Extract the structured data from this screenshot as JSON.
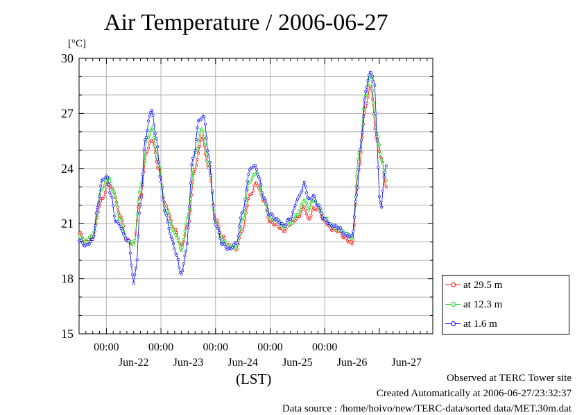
{
  "chart_data": {
    "type": "line",
    "title": "Air Temperature / 2006-06-27",
    "ylabel": "[°C]",
    "xlabel": "(LST)",
    "ylim": [
      15,
      30
    ],
    "yticks": [
      15,
      18,
      21,
      24,
      27,
      30
    ],
    "xlim": [
      "2006-06-21T12:00",
      "2006-06-27T23:30"
    ],
    "xtick_time_labels": [
      "00:00",
      "00:00",
      "00:00",
      "00:00",
      "00:00"
    ],
    "xtick_times": [
      "2006-06-22T00:00",
      "2006-06-23T00:00",
      "2006-06-24T00:00",
      "2006-06-25T00:00",
      "2006-06-26T00:00"
    ],
    "date_labels": [
      "Jun-22",
      "Jun-23",
      "Jun-24",
      "Jun-25",
      "Jun-26",
      "Jun-27"
    ],
    "grid": true,
    "legend_position": "right",
    "series": [
      {
        "name": "at 29.5 m",
        "color": "#ff0000",
        "keypoints": [
          [
            "2006-06-21T12:00",
            20.5
          ],
          [
            "2006-06-21T15:00",
            20.0
          ],
          [
            "2006-06-21T18:00",
            20.3
          ],
          [
            "2006-06-21T22:00",
            22.3
          ],
          [
            "2006-06-22T01:00",
            23.2
          ],
          [
            "2006-06-22T03:00",
            22.8
          ],
          [
            "2006-06-22T06:00",
            21.5
          ],
          [
            "2006-06-22T09:00",
            20.1
          ],
          [
            "2006-06-22T12:00",
            19.9
          ],
          [
            "2006-06-22T15:00",
            22.5
          ],
          [
            "2006-06-22T18:00",
            25.0
          ],
          [
            "2006-06-22T20:00",
            25.6
          ],
          [
            "2006-06-22T23:00",
            24.0
          ],
          [
            "2006-06-23T02:00",
            22.0
          ],
          [
            "2006-06-23T06:00",
            20.7
          ],
          [
            "2006-06-23T09:00",
            19.8
          ],
          [
            "2006-06-23T12:00",
            21.0
          ],
          [
            "2006-06-23T15:00",
            24.0
          ],
          [
            "2006-06-23T18:00",
            25.7
          ],
          [
            "2006-06-23T21:00",
            24.0
          ],
          [
            "2006-06-24T00:00",
            21.3
          ],
          [
            "2006-06-24T03:00",
            20.3
          ],
          [
            "2006-06-24T06:00",
            19.8
          ],
          [
            "2006-06-24T09:00",
            19.6
          ],
          [
            "2006-06-24T12:00",
            20.7
          ],
          [
            "2006-06-24T15:00",
            22.5
          ],
          [
            "2006-06-24T18:00",
            23.2
          ],
          [
            "2006-06-24T21:00",
            22.3
          ],
          [
            "2006-06-25T00:00",
            21.1
          ],
          [
            "2006-06-25T03:00",
            20.9
          ],
          [
            "2006-06-25T06:00",
            20.6
          ],
          [
            "2006-06-25T09:00",
            21.0
          ],
          [
            "2006-06-25T12:00",
            21.3
          ],
          [
            "2006-06-25T15:00",
            21.9
          ],
          [
            "2006-06-25T17:00",
            21.2
          ],
          [
            "2006-06-25T19:00",
            21.8
          ],
          [
            "2006-06-25T21:00",
            21.8
          ],
          [
            "2006-06-26T00:00",
            21.1
          ],
          [
            "2006-06-26T03:00",
            20.7
          ],
          [
            "2006-06-26T06:00",
            20.6
          ],
          [
            "2006-06-26T09:00",
            20.2
          ],
          [
            "2006-06-26T12:00",
            19.9
          ],
          [
            "2006-06-26T15:00",
            24.0
          ],
          [
            "2006-06-26T18:00",
            27.3
          ],
          [
            "2006-06-26T20:00",
            28.5
          ],
          [
            "2006-06-26T23:00",
            25.5
          ],
          [
            "2006-06-27T01:00",
            24.5
          ],
          [
            "2006-06-27T03:00",
            23.0
          ]
        ]
      },
      {
        "name": "at 12.3 m",
        "color": "#00d800",
        "keypoints": [
          [
            "2006-06-21T12:00",
            20.3
          ],
          [
            "2006-06-21T15:00",
            20.0
          ],
          [
            "2006-06-21T18:00",
            20.4
          ],
          [
            "2006-06-21T22:00",
            22.9
          ],
          [
            "2006-06-22T01:00",
            23.5
          ],
          [
            "2006-06-22T03:00",
            22.8
          ],
          [
            "2006-06-22T06:00",
            21.2
          ],
          [
            "2006-06-22T09:00",
            20.1
          ],
          [
            "2006-06-22T12:00",
            19.9
          ],
          [
            "2006-06-22T15:00",
            23.0
          ],
          [
            "2006-06-22T18:00",
            25.6
          ],
          [
            "2006-06-22T20:00",
            26.2
          ],
          [
            "2006-06-22T23:00",
            24.3
          ],
          [
            "2006-06-23T02:00",
            21.8
          ],
          [
            "2006-06-23T06:00",
            20.5
          ],
          [
            "2006-06-23T09:00",
            19.6
          ],
          [
            "2006-06-23T12:00",
            21.5
          ],
          [
            "2006-06-23T15:00",
            24.8
          ],
          [
            "2006-06-23T18:00",
            26.2
          ],
          [
            "2006-06-23T21:00",
            24.3
          ],
          [
            "2006-06-24T00:00",
            21.0
          ],
          [
            "2006-06-24T03:00",
            20.1
          ],
          [
            "2006-06-24T06:00",
            19.8
          ],
          [
            "2006-06-24T09:00",
            19.7
          ],
          [
            "2006-06-24T12:00",
            21.2
          ],
          [
            "2006-06-24T15:00",
            23.3
          ],
          [
            "2006-06-24T18:00",
            23.8
          ],
          [
            "2006-06-24T21:00",
            22.4
          ],
          [
            "2006-06-25T00:00",
            21.3
          ],
          [
            "2006-06-25T03:00",
            21.2
          ],
          [
            "2006-06-25T06:00",
            20.8
          ],
          [
            "2006-06-25T09:00",
            21.0
          ],
          [
            "2006-06-25T12:00",
            21.5
          ],
          [
            "2006-06-25T15:00",
            22.3
          ],
          [
            "2006-06-25T17:00",
            21.8
          ],
          [
            "2006-06-25T19:00",
            22.3
          ],
          [
            "2006-06-25T21:00",
            22.0
          ],
          [
            "2006-06-26T00:00",
            21.3
          ],
          [
            "2006-06-26T03:00",
            20.9
          ],
          [
            "2006-06-26T06:00",
            20.7
          ],
          [
            "2006-06-26T09:00",
            20.5
          ],
          [
            "2006-06-26T12:00",
            20.2
          ],
          [
            "2006-06-26T15:00",
            24.8
          ],
          [
            "2006-06-26T18:00",
            28.0
          ],
          [
            "2006-06-26T20:00",
            29.1
          ],
          [
            "2006-06-26T23:00",
            26.0
          ],
          [
            "2006-06-27T01:00",
            24.5
          ],
          [
            "2006-06-27T03:00",
            23.3
          ]
        ]
      },
      {
        "name": "at 1.6 m",
        "color": "#0000ff",
        "keypoints": [
          [
            "2006-06-21T12:00",
            20.1
          ],
          [
            "2006-06-21T15:00",
            19.8
          ],
          [
            "2006-06-21T18:00",
            20.1
          ],
          [
            "2006-06-21T20:00",
            21.8
          ],
          [
            "2006-06-21T22:00",
            23.3
          ],
          [
            "2006-06-22T00:00",
            23.6
          ],
          [
            "2006-06-22T02:00",
            22.6
          ],
          [
            "2006-06-22T04:00",
            21.2
          ],
          [
            "2006-06-22T06:00",
            20.9
          ],
          [
            "2006-06-22T08:00",
            20.3
          ],
          [
            "2006-06-22T10:00",
            20.0
          ],
          [
            "2006-06-22T11:00",
            18.8
          ],
          [
            "2006-06-22T12:00",
            17.7
          ],
          [
            "2006-06-22T13:00",
            18.6
          ],
          [
            "2006-06-22T15:00",
            22.0
          ],
          [
            "2006-06-22T17:00",
            25.5
          ],
          [
            "2006-06-22T19:00",
            26.8
          ],
          [
            "2006-06-22T20:00",
            27.2
          ],
          [
            "2006-06-22T22:00",
            25.6
          ],
          [
            "2006-06-23T00:00",
            23.2
          ],
          [
            "2006-06-23T02:00",
            21.5
          ],
          [
            "2006-06-23T05:00",
            20.1
          ],
          [
            "2006-06-23T07:00",
            19.2
          ],
          [
            "2006-06-23T09:00",
            18.2
          ],
          [
            "2006-06-23T11:00",
            19.5
          ],
          [
            "2006-06-23T14:00",
            24.5
          ],
          [
            "2006-06-23T17:00",
            26.7
          ],
          [
            "2006-06-23T19:00",
            26.8
          ],
          [
            "2006-06-23T21:00",
            24.6
          ],
          [
            "2006-06-24T00:00",
            21.0
          ],
          [
            "2006-06-24T03:00",
            19.9
          ],
          [
            "2006-06-24T06:00",
            19.6
          ],
          [
            "2006-06-24T09:00",
            19.9
          ],
          [
            "2006-06-24T12:00",
            21.7
          ],
          [
            "2006-06-24T15:00",
            23.9
          ],
          [
            "2006-06-24T17:00",
            24.2
          ],
          [
            "2006-06-24T19:00",
            23.6
          ],
          [
            "2006-06-24T21:00",
            22.5
          ],
          [
            "2006-06-25T00:00",
            21.5
          ],
          [
            "2006-06-25T03:00",
            21.2
          ],
          [
            "2006-06-25T06:00",
            20.9
          ],
          [
            "2006-06-25T09:00",
            21.3
          ],
          [
            "2006-06-25T12:00",
            22.3
          ],
          [
            "2006-06-25T14:00",
            22.8
          ],
          [
            "2006-06-25T15:00",
            23.2
          ],
          [
            "2006-06-25T17:00",
            22.3
          ],
          [
            "2006-06-25T19:00",
            22.5
          ],
          [
            "2006-06-25T21:00",
            22.0
          ],
          [
            "2006-06-26T00:00",
            21.2
          ],
          [
            "2006-06-26T03:00",
            20.9
          ],
          [
            "2006-06-26T06:00",
            20.8
          ],
          [
            "2006-06-26T09:00",
            20.4
          ],
          [
            "2006-06-26T12:00",
            20.3
          ],
          [
            "2006-06-26T14:00",
            22.5
          ],
          [
            "2006-06-26T16:00",
            25.5
          ],
          [
            "2006-06-26T18:00",
            28.2
          ],
          [
            "2006-06-26T20:00",
            29.3
          ],
          [
            "2006-06-26T22:00",
            28.6
          ],
          [
            "2006-06-26T23:00",
            25.5
          ],
          [
            "2006-06-27T00:00",
            22.5
          ],
          [
            "2006-06-27T01:00",
            21.9
          ],
          [
            "2006-06-27T02:00",
            23.5
          ],
          [
            "2006-06-27T03:00",
            24.2
          ]
        ]
      }
    ]
  },
  "footer": {
    "site": "Observed at TERC Tower site",
    "created": "Created Automatically at 2006-06-27/23:32:37",
    "source": "Data source : /home/hoivo/new/TERC-data/sorted  data/MET.30m.dat"
  }
}
